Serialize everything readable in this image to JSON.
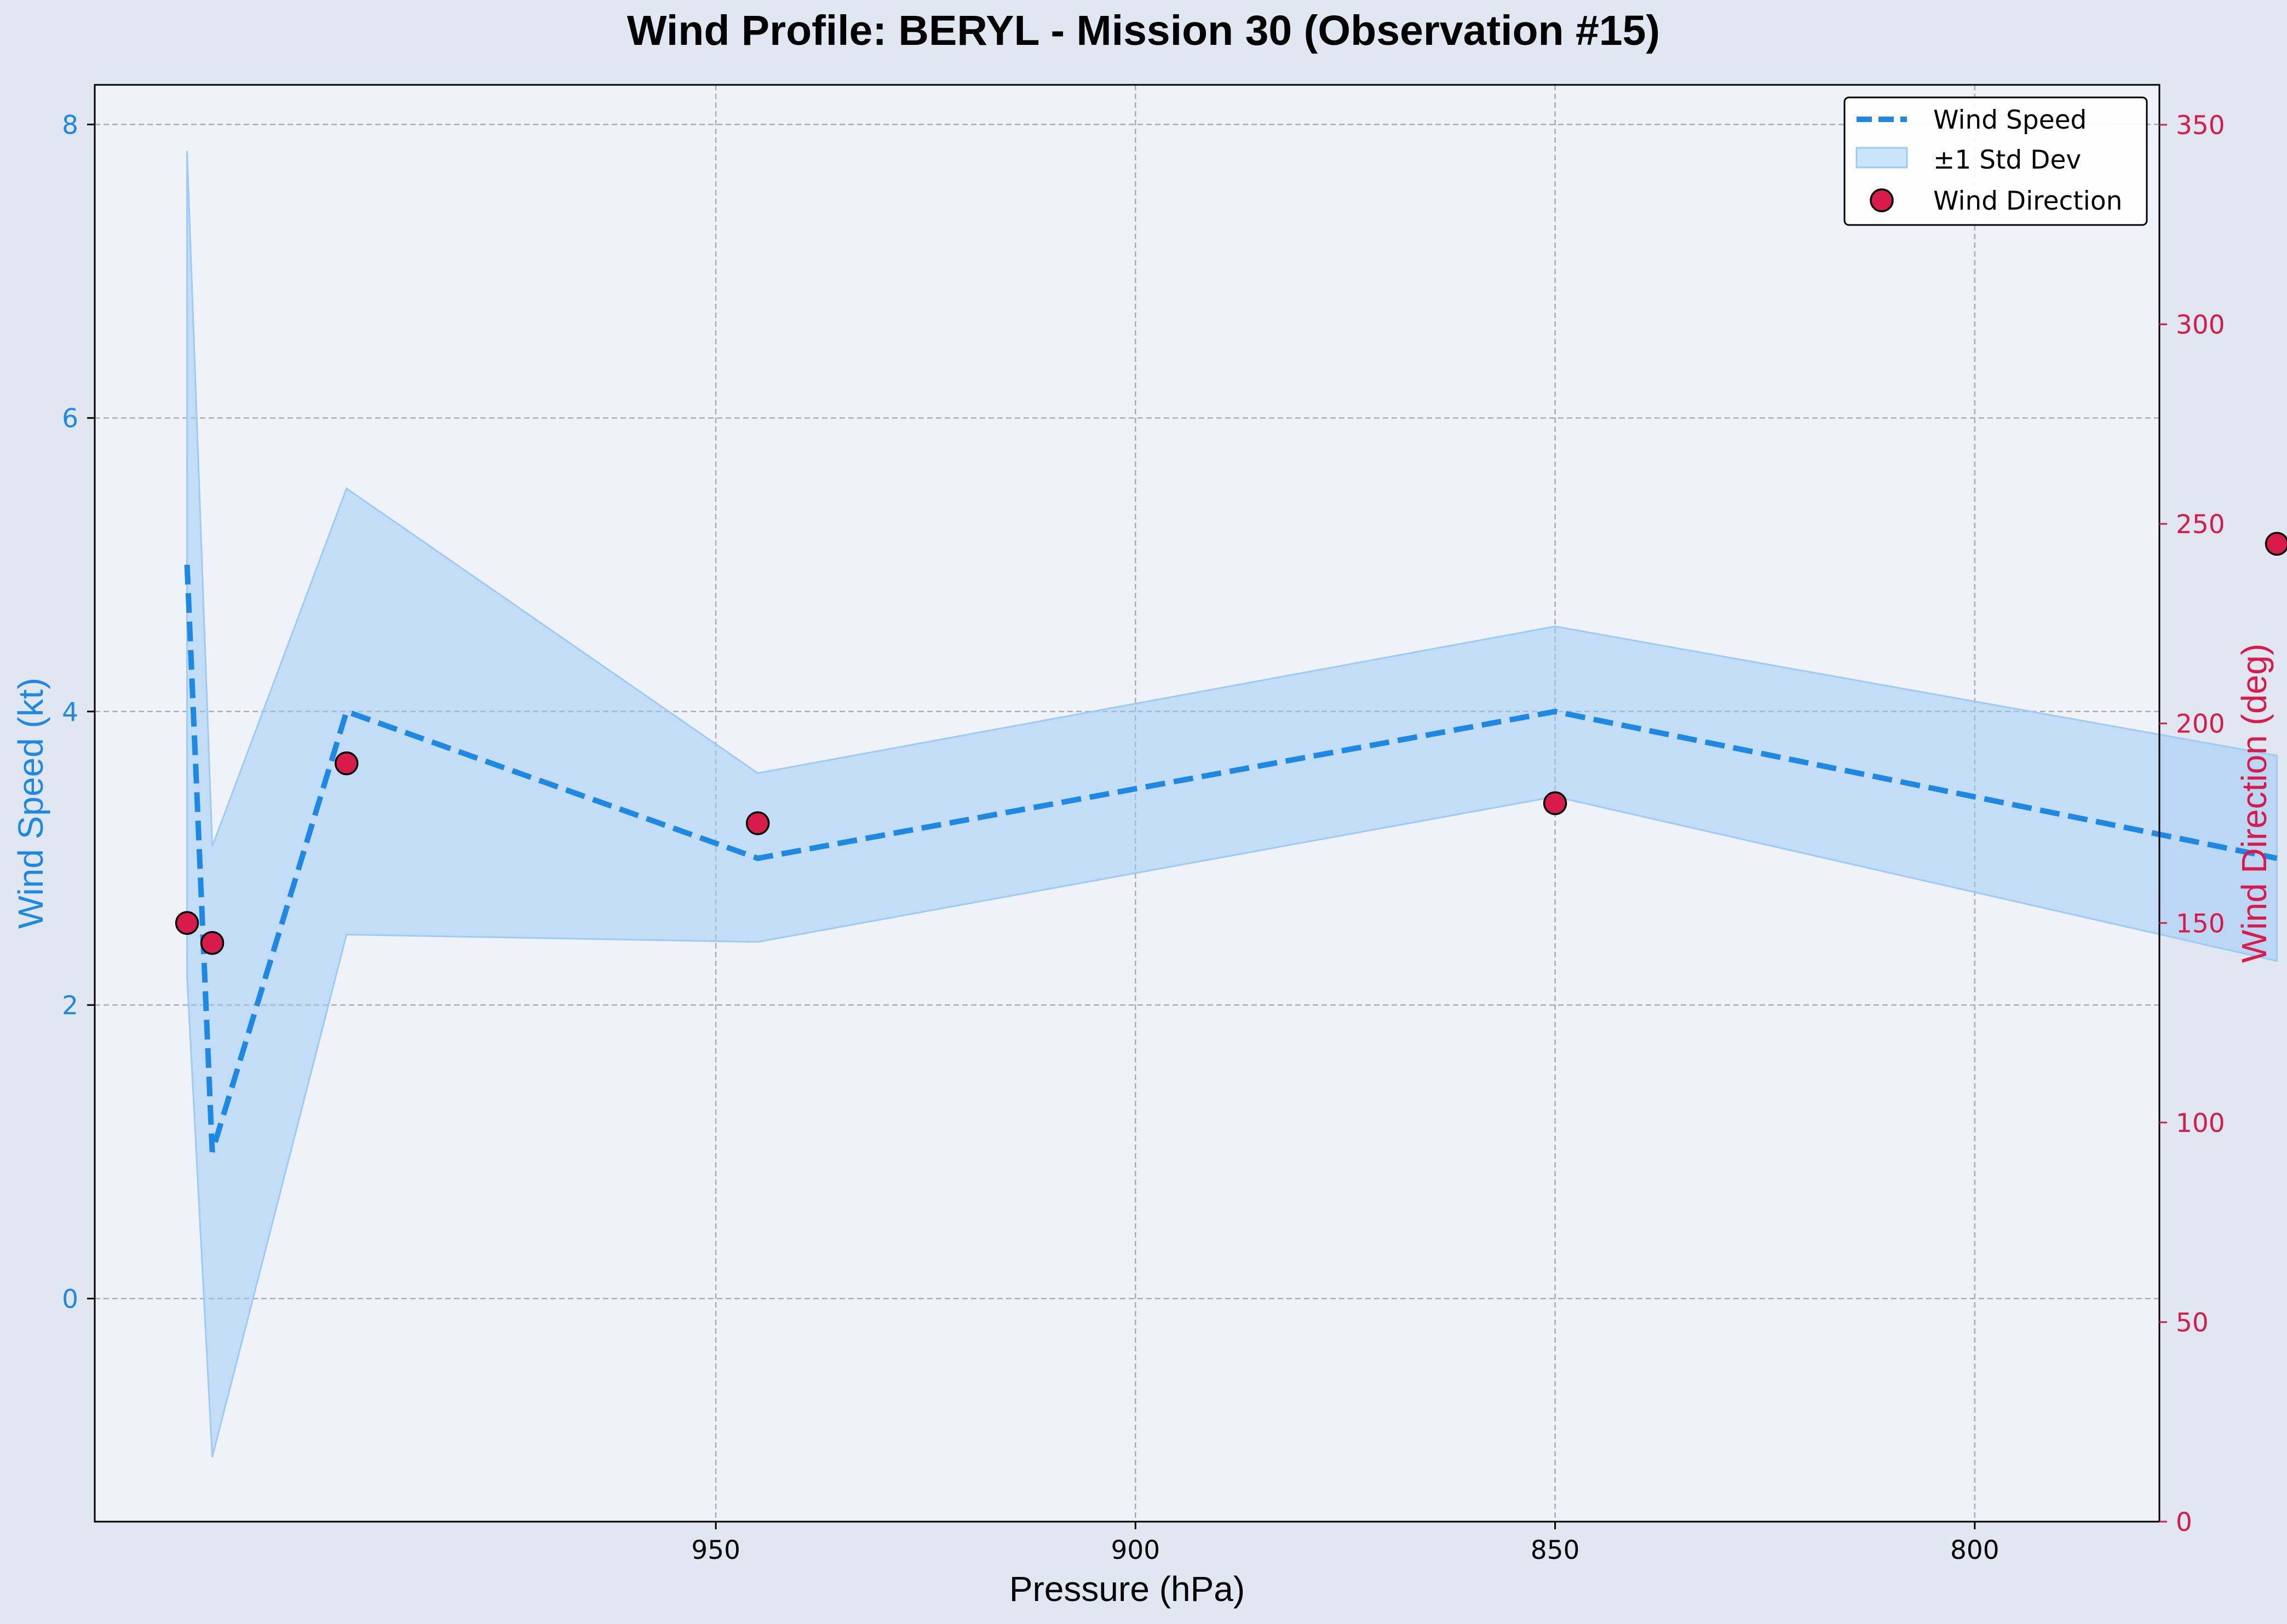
{
  "chart_data": {
    "type": "line",
    "title": "Wind Profile: BERYL - Mission 30 (Observation #15)",
    "xlabel": "Pressure (hPa)",
    "ylabel": "Wind Speed (kt)",
    "y2label": "Wind Direction (deg)",
    "x_inverted": true,
    "xlim": [
      1024,
      778
    ],
    "ylim": [
      -1.52,
      8.27
    ],
    "y2lim": [
      0,
      360
    ],
    "xticks": [
      950,
      900,
      850,
      800
    ],
    "yticks": [
      0,
      2,
      4,
      6,
      8
    ],
    "y2ticks": [
      0,
      50,
      100,
      150,
      200,
      250,
      300,
      350
    ],
    "grid": true,
    "legend_position": "top-right",
    "series": [
      {
        "name": "Wind Speed",
        "style": "dashed-line",
        "color": "#1e88e5",
        "axis": "left",
        "x": [
          1013,
          1010,
          994,
          945,
          850,
          764
        ],
        "y": [
          5,
          1,
          4,
          3,
          4,
          3
        ]
      },
      {
        "name": "±1 Std Dev",
        "style": "band",
        "color": "#9ecbf5",
        "axis": "left",
        "x": [
          1013,
          1010,
          994,
          945,
          850,
          764
        ],
        "lower": [
          2.2,
          -1.08,
          2.48,
          2.43,
          3.42,
          2.3
        ],
        "upper": [
          7.82,
          3.08,
          5.52,
          3.58,
          4.58,
          3.7
        ]
      },
      {
        "name": "Wind Direction",
        "style": "scatter",
        "color": "#d81b4a",
        "axis": "right",
        "x": [
          1013,
          1010,
          994,
          945,
          850,
          764
        ],
        "y": [
          150,
          145,
          190,
          175,
          180,
          245
        ]
      }
    ]
  },
  "colors": {
    "figure_background": "#e0e7f0",
    "plot_background": "#eff3f9",
    "left_axis": "#1e88e5",
    "right_axis": "#d81b4a"
  }
}
